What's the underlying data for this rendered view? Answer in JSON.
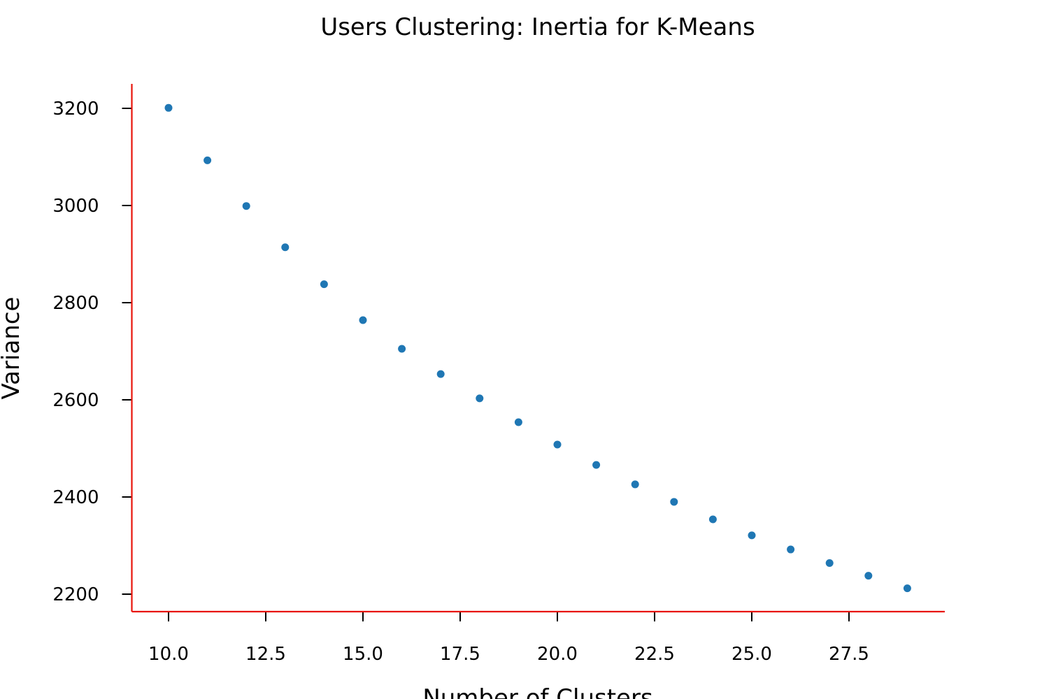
{
  "chart_data": {
    "type": "scatter",
    "title": "Users Clustering: Inertia for K-Means",
    "xlabel": "Number of Clusters",
    "ylabel": "Variance",
    "x": [
      10,
      11,
      12,
      13,
      14,
      15,
      16,
      17,
      18,
      19,
      20,
      21,
      22,
      23,
      24,
      25,
      26,
      27,
      28,
      29
    ],
    "y": [
      3201,
      3093,
      2999,
      2914,
      2838,
      2764,
      2705,
      2653,
      2603,
      2554,
      2508,
      2466,
      2426,
      2390,
      2354,
      2321,
      2292,
      2264,
      2238,
      2212
    ],
    "xlim": [
      9.05,
      30.0
    ],
    "ylim": [
      2164,
      3251
    ],
    "x_ticks": [
      10.0,
      12.5,
      15.0,
      17.5,
      20.0,
      22.5,
      25.0,
      27.5
    ],
    "x_tick_labels": [
      "10.0",
      "12.5",
      "15.0",
      "17.5",
      "20.0",
      "22.5",
      "25.0",
      "27.5"
    ],
    "y_ticks": [
      2200,
      2400,
      2600,
      2800,
      3000,
      3200
    ],
    "y_tick_labels": [
      "2200",
      "2400",
      "2600",
      "2800",
      "3000",
      "3200"
    ],
    "grid": false,
    "colors": {
      "points": "#1f77b4",
      "spines": "#e8150b",
      "ticks": "#000000",
      "text": "#000000"
    }
  }
}
